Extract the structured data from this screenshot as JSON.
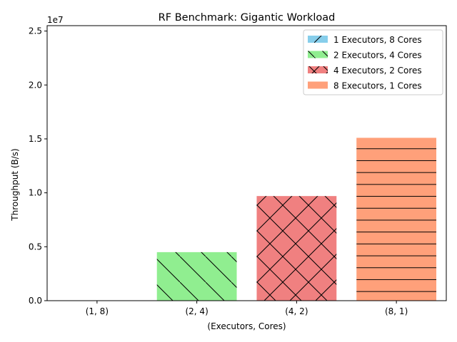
{
  "chart_data": {
    "type": "bar",
    "title": "RF Benchmark: Gigantic Workload",
    "xlabel": "(Executors, Cores)",
    "ylabel": "Throughput (B/s)",
    "y_offset_label": "1e7",
    "ylim": [
      0,
      25500000
    ],
    "yticks": [
      0,
      5000000,
      10000000,
      15000000,
      20000000,
      25000000
    ],
    "ytick_labels": [
      "0.0",
      "0.5",
      "1.0",
      "1.5",
      "2.0",
      "2.5"
    ],
    "categories": [
      "(1, 8)",
      "(2, 4)",
      "(4, 2)",
      "(8, 1)"
    ],
    "values": [
      0,
      4500000,
      9700000,
      15100000
    ],
    "grid": false,
    "legend_position": "top-right",
    "series": [
      {
        "name": "1 Executors, 8 Cores",
        "color": "#87ceeb",
        "hatch": "forward-diagonal",
        "value": 0
      },
      {
        "name": "2 Executors, 4 Cores",
        "color": "#90ee90",
        "hatch": "back-diagonal",
        "value": 4500000
      },
      {
        "name": "4 Executors, 2 Cores",
        "color": "#f08080",
        "hatch": "cross-diagonal",
        "value": 9700000
      },
      {
        "name": "8 Executors, 1 Cores",
        "color": "#ffa07a",
        "hatch": "horizontal",
        "value": 15100000
      }
    ]
  }
}
